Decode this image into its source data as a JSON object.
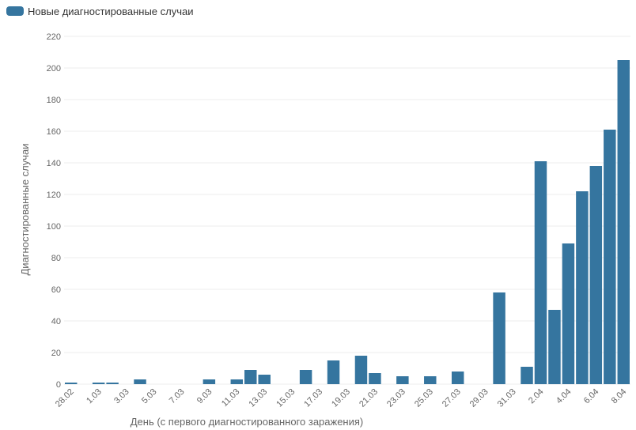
{
  "chart_data": {
    "type": "bar",
    "legend": "top-left",
    "series": [
      {
        "name": "Новые диагностированные случаи",
        "color": "#35759f",
        "values": [
          1,
          0,
          1,
          1,
          0,
          3,
          0,
          0,
          0,
          0,
          3,
          0,
          3,
          9,
          6,
          0,
          0,
          9,
          0,
          15,
          0,
          18,
          7,
          0,
          5,
          0,
          5,
          0,
          8,
          0,
          0,
          58,
          0,
          11,
          141,
          47,
          89,
          122,
          138,
          161,
          205
        ]
      }
    ],
    "categories": [
      "28.02",
      null,
      "1.03",
      null,
      "3.03",
      null,
      "5.03",
      null,
      "7.03",
      null,
      "9.03",
      null,
      "11.03",
      null,
      "13.03",
      null,
      "15.03",
      null,
      "17.03",
      null,
      "19.03",
      null,
      "21.03",
      null,
      "23.03",
      null,
      "25.03",
      null,
      "27.03",
      null,
      "29.03",
      null,
      "31.03",
      null,
      "2.04",
      null,
      "4.04",
      null,
      "6.04",
      null,
      "8.04"
    ],
    "xlabel": "День (с первого диагностированного заражения)",
    "ylabel": "Диагностированные случаи",
    "ylim": [
      0,
      220
    ],
    "yticks": [
      0,
      20,
      40,
      60,
      80,
      100,
      120,
      140,
      160,
      180,
      200,
      220
    ],
    "grid": true
  }
}
